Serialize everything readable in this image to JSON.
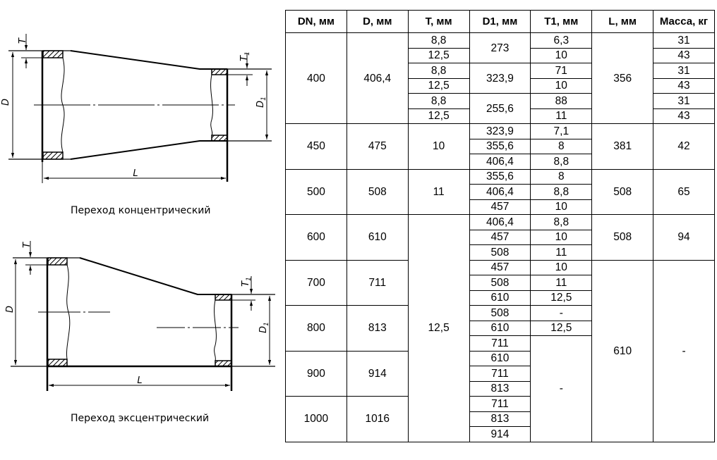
{
  "drawings": {
    "concentric": {
      "caption": "Переход концентрический",
      "labels": {
        "T": "T",
        "T1": "T",
        "T1_sub": "1",
        "D": "D",
        "D1": "D",
        "D1_sub": "1",
        "L": "L"
      }
    },
    "eccentric": {
      "caption": "Переход эксцентрический",
      "labels": {
        "T": "T",
        "T1": "T",
        "T1_sub": "1",
        "D": "D",
        "D1": "D",
        "D1_sub": "1",
        "L": "L"
      }
    }
  },
  "table": {
    "headers": [
      "DN, мм",
      "D, мм",
      "T, мм",
      "D1, мм",
      "T1, мм",
      "L, мм",
      "Масса, кг"
    ],
    "rows": [
      [
        {
          "t": "400",
          "rs": 6
        },
        {
          "t": "406,4",
          "rs": 6
        },
        {
          "t": "8,8"
        },
        {
          "t": "273",
          "rs": 2
        },
        {
          "t": "6,3"
        },
        {
          "t": "356",
          "rs": 6
        },
        {
          "t": "31"
        }
      ],
      [
        {
          "t": "12,5"
        },
        {
          "t": "10"
        },
        {
          "t": "43"
        }
      ],
      [
        {
          "t": "8,8"
        },
        {
          "t": "323,9",
          "rs": 2
        },
        {
          "t": "71"
        },
        {
          "t": "31"
        }
      ],
      [
        {
          "t": "12,5"
        },
        {
          "t": "10"
        },
        {
          "t": "43"
        }
      ],
      [
        {
          "t": "8,8"
        },
        {
          "t": "255,6",
          "rs": 2
        },
        {
          "t": "88"
        },
        {
          "t": "31"
        }
      ],
      [
        {
          "t": "12,5"
        },
        {
          "t": "11"
        },
        {
          "t": "43"
        }
      ],
      [
        {
          "t": "450",
          "rs": 3
        },
        {
          "t": "475",
          "rs": 3
        },
        {
          "t": "10",
          "rs": 3
        },
        {
          "t": "323,9"
        },
        {
          "t": "7,1"
        },
        {
          "t": "381",
          "rs": 3
        },
        {
          "t": "42",
          "rs": 3
        }
      ],
      [
        {
          "t": "355,6"
        },
        {
          "t": "8"
        }
      ],
      [
        {
          "t": "406,4"
        },
        {
          "t": "8,8"
        }
      ],
      [
        {
          "t": "500",
          "rs": 3
        },
        {
          "t": "508",
          "rs": 3
        },
        {
          "t": "11",
          "rs": 3
        },
        {
          "t": "355,6"
        },
        {
          "t": "8"
        },
        {
          "t": "508",
          "rs": 3
        },
        {
          "t": "65",
          "rs": 3
        }
      ],
      [
        {
          "t": "406,4"
        },
        {
          "t": "8,8"
        }
      ],
      [
        {
          "t": "457"
        },
        {
          "t": "10"
        }
      ],
      [
        {
          "t": "600",
          "rs": 3
        },
        {
          "t": "610",
          "rs": 3
        },
        {
          "t": "12,5",
          "rs": 15
        },
        {
          "t": "406,4"
        },
        {
          "t": "8,8"
        },
        {
          "t": "508",
          "rs": 3
        },
        {
          "t": "94",
          "rs": 3
        }
      ],
      [
        {
          "t": "457"
        },
        {
          "t": "10"
        }
      ],
      [
        {
          "t": "508"
        },
        {
          "t": "11"
        }
      ],
      [
        {
          "t": "700",
          "rs": 3
        },
        {
          "t": "711",
          "rs": 3
        },
        {
          "t": "457"
        },
        {
          "t": "10"
        },
        {
          "t": "610",
          "rs": 12
        },
        {
          "t": "-",
          "rs": 12
        }
      ],
      [
        {
          "t": "508"
        },
        {
          "t": "11"
        }
      ],
      [
        {
          "t": "610"
        },
        {
          "t": "12,5"
        }
      ],
      [
        {
          "t": "800",
          "rs": 3
        },
        {
          "t": "813",
          "rs": 3
        },
        {
          "t": "508"
        },
        {
          "t": "-"
        }
      ],
      [
        {
          "t": "610"
        },
        {
          "t": "12,5"
        }
      ],
      [
        {
          "t": "711"
        },
        {
          "t": "-",
          "rs": 7
        }
      ],
      [
        {
          "t": "900",
          "rs": 3
        },
        {
          "t": "914",
          "rs": 3
        },
        {
          "t": "610"
        }
      ],
      [
        {
          "t": "711"
        }
      ],
      [
        {
          "t": "813"
        }
      ],
      [
        {
          "t": "1000",
          "rs": 3
        },
        {
          "t": "1016",
          "rs": 3
        },
        {
          "t": "711"
        }
      ],
      [
        {
          "t": "813"
        }
      ],
      [
        {
          "t": "914"
        }
      ]
    ]
  }
}
